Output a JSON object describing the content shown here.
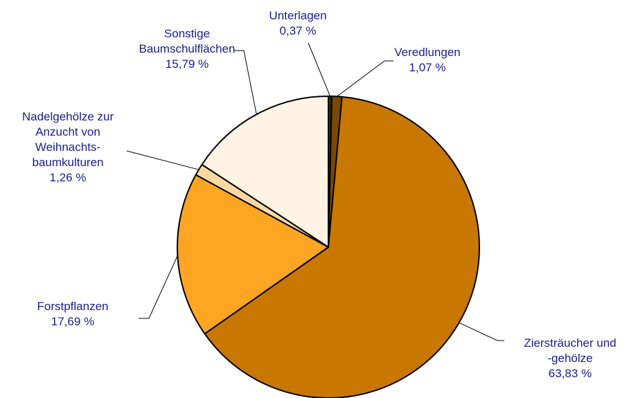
{
  "chart_data": {
    "type": "pie",
    "categories": [
      "Unterlagen",
      "Veredlungen",
      "Ziersträucher und\n-gehölze",
      "Forstpflanzen",
      "Nadelgehölze zur\nAnzucht von\nWeihnachts-\nbaumkulturen",
      "Sonstige\nBaumschulflächen"
    ],
    "values": [
      0.37,
      1.07,
      63.83,
      17.69,
      1.26,
      15.79
    ],
    "value_labels": [
      "0,37 %",
      "1,07 %",
      "63,83 %",
      "17,69 %",
      "1,26 %",
      "15,79 %"
    ],
    "colors": [
      "#3d2700",
      "#7a4800",
      "#c87800",
      "#ffa524",
      "#ffd9a3",
      "#fff3e3"
    ]
  }
}
